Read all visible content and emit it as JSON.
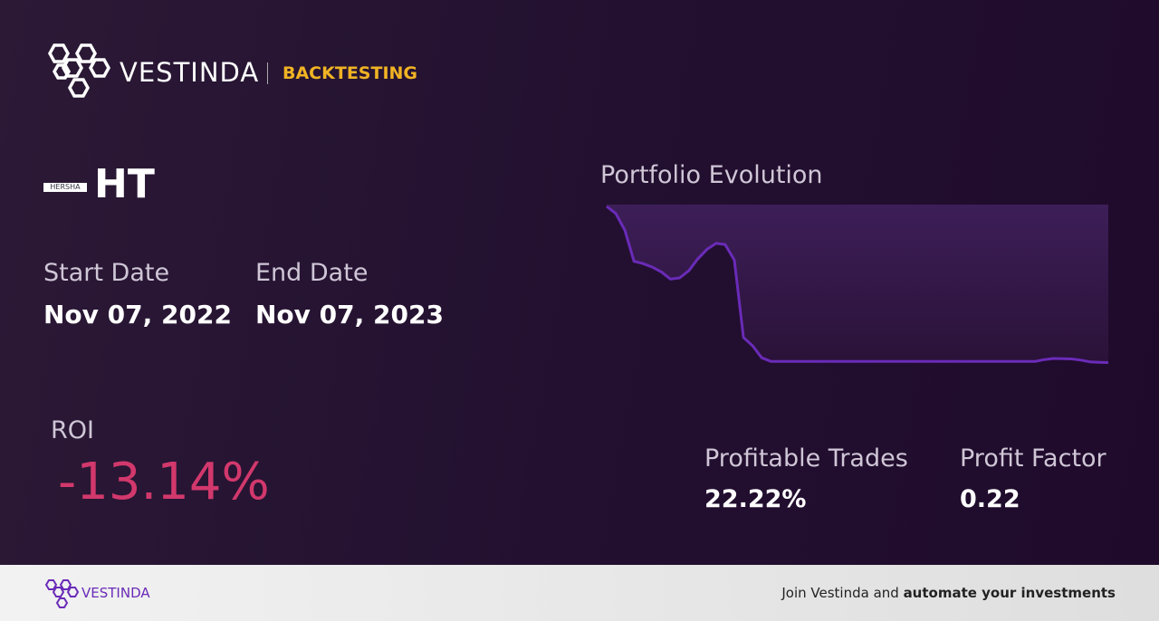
{
  "header": {
    "brand": "VESTINDA",
    "section": "BACKTESTING"
  },
  "asset": {
    "logo_text": "HERSHA",
    "ticker": "HT"
  },
  "dates": {
    "start_label": "Start Date",
    "start": "Nov 07, 2022",
    "end_label": "End Date",
    "end": "Nov 07, 2023"
  },
  "roi": {
    "label": "ROI",
    "value": "-13.14%"
  },
  "metrics": {
    "profitable_label": "Profitable Trades",
    "profitable": "22.22%",
    "factor_label": "Profit Factor",
    "factor": "0.22"
  },
  "chart_data": {
    "type": "area",
    "title": "Portfolio Evolution",
    "color": "#6a2bb8",
    "values": [
      100,
      99.4,
      98.0,
      95.4,
      95.2,
      94.9,
      94.5,
      93.9,
      94.0,
      94.6,
      95.6,
      96.4,
      96.9,
      96.8,
      95.5,
      89.0,
      88.3,
      87.3,
      87.0,
      87.0,
      87.0,
      87.0,
      87.0,
      87.0,
      87.0,
      87.0,
      87.0,
      87.0,
      87.0,
      87.0,
      87.0,
      87.0,
      87.0,
      87.0,
      87.0,
      87.0,
      87.0,
      87.0,
      87.0,
      87.0,
      87.0,
      87.0,
      87.0,
      87.0,
      87.0,
      87.0,
      87.0,
      87.0,
      87.15,
      87.24,
      87.22,
      87.2,
      87.1,
      86.95,
      86.92,
      86.9
    ],
    "ylim": [
      86.86,
      100
    ]
  },
  "footer": {
    "brand": "VESTINDA",
    "text": "Join Vestinda and ",
    "bold": "automate your investments"
  }
}
